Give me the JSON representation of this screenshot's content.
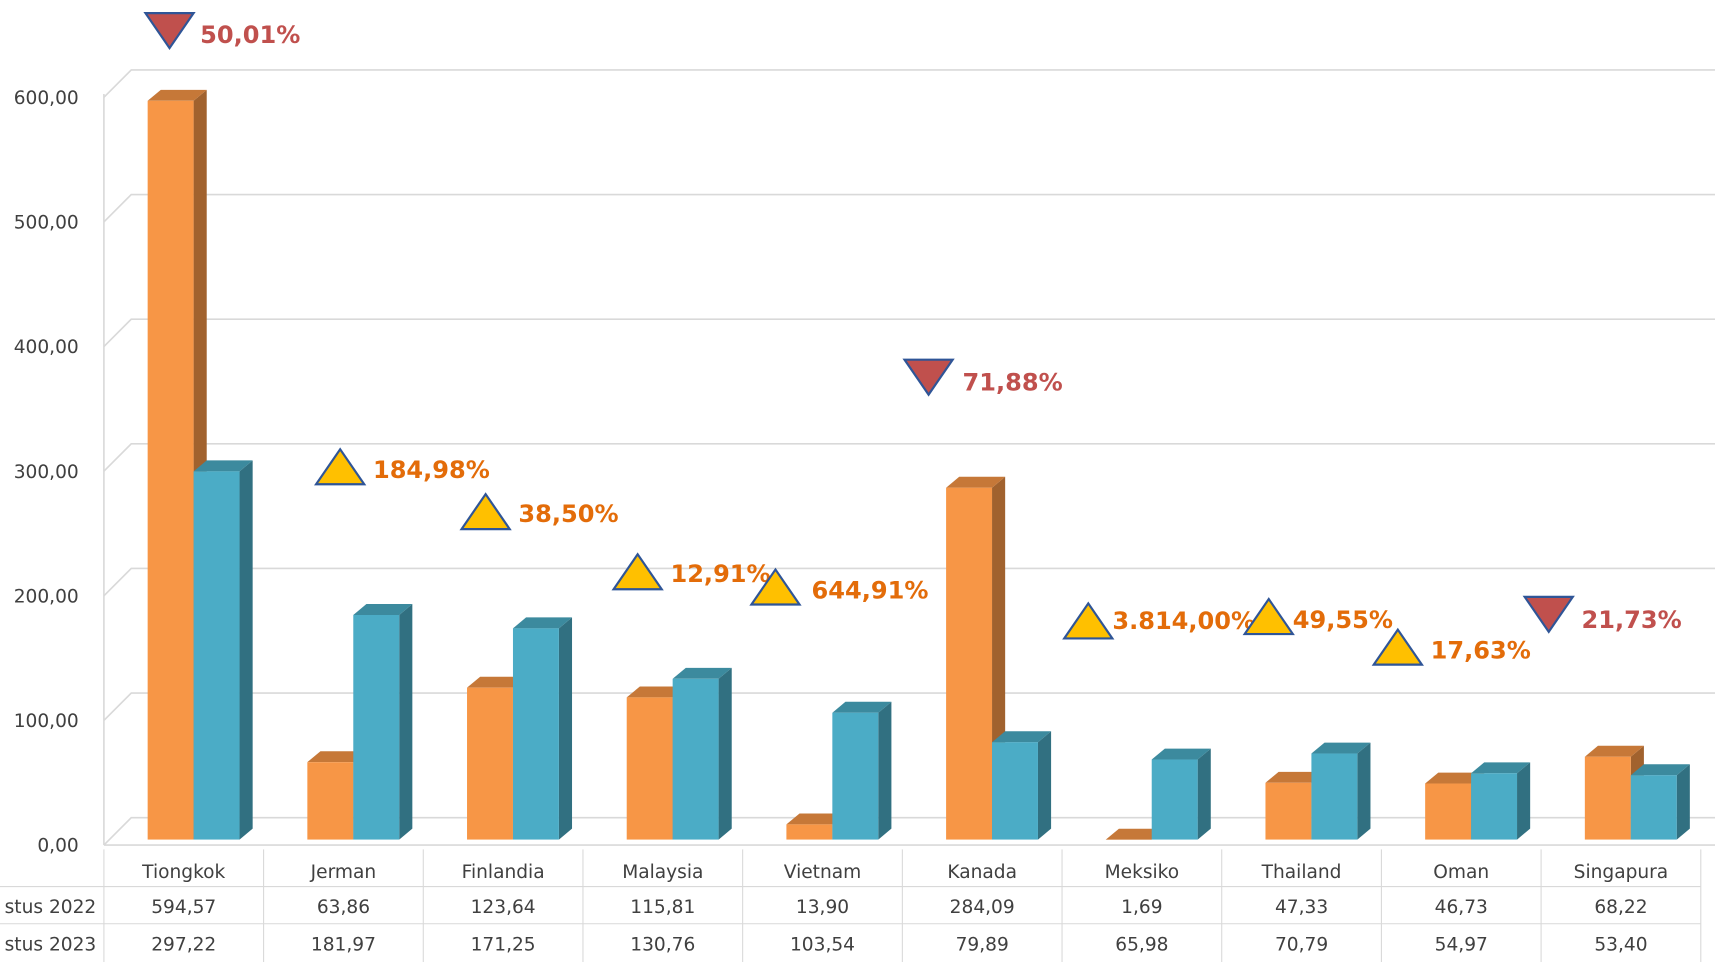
{
  "chart_data": {
    "type": "bar3d",
    "categories": [
      "Tiongkok",
      "Jerman",
      "Finlandia",
      "Malaysia",
      "Vietnam",
      "Kanada",
      "Meksiko",
      "Thailand",
      "Oman",
      "Singapura"
    ],
    "series": [
      {
        "name": "stus 2022",
        "color": "#F79646",
        "values": [
          594.57,
          63.86,
          123.64,
          115.81,
          13.9,
          284.09,
          1.69,
          47.33,
          46.73,
          68.22
        ],
        "value_labels": [
          "594,57",
          "63,86",
          "123,64",
          "115,81",
          "13,90",
          "284,09",
          "1,69",
          "47,33",
          "46,73",
          "68,22"
        ]
      },
      {
        "name": "stus 2023",
        "color": "#4BACC6",
        "values": [
          297.22,
          181.97,
          171.25,
          130.76,
          103.54,
          79.89,
          65.98,
          70.79,
          54.97,
          53.4
        ],
        "value_labels": [
          "297,22",
          "181,97",
          "171,25",
          "130,76",
          "103,54",
          "79,89",
          "65,98",
          "70,79",
          "54,97",
          "53,40"
        ]
      }
    ],
    "ylim": [
      0,
      600
    ],
    "yticks": [
      {
        "value": 0,
        "label": "0,00"
      },
      {
        "value": 100,
        "label": "100,00"
      },
      {
        "value": 200,
        "label": "200,00"
      },
      {
        "value": 300,
        "label": "300,00"
      },
      {
        "value": 400,
        "label": "400,00"
      },
      {
        "value": 500,
        "label": "500,00"
      },
      {
        "value": 600,
        "label": "600,00"
      }
    ],
    "grid": true,
    "annotations": [
      {
        "label": "50,01%",
        "direction": "down"
      },
      {
        "label": "184,98%",
        "direction": "up"
      },
      {
        "label": "38,50%",
        "direction": "up"
      },
      {
        "label": "12,91%",
        "direction": "up"
      },
      {
        "label": "644,91%",
        "direction": "up"
      },
      {
        "label": "71,88%",
        "direction": "down"
      },
      {
        "label": "3.814,00%",
        "direction": "up"
      },
      {
        "label": "49,55%",
        "direction": "up"
      },
      {
        "label": "17,63%",
        "direction": "up"
      },
      {
        "label": "21,73%",
        "direction": "down"
      }
    ]
  }
}
